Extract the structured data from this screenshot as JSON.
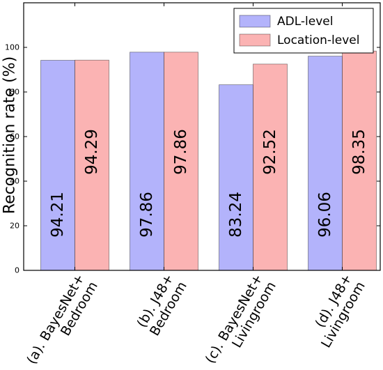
{
  "chart_data": {
    "type": "bar",
    "categories": [
      [
        "(a). BayesNet+",
        "Bedroom"
      ],
      [
        "(b). J48+",
        "Bedroom"
      ],
      [
        "(c). BayesNet+",
        "Livingroom"
      ],
      [
        "(d). J48+",
        "Livingroom"
      ]
    ],
    "series": [
      {
        "name": "ADL-level",
        "values": [
          94.21,
          97.86,
          83.24,
          96.06
        ],
        "value_labels": [
          "94.21",
          "97.86",
          "83.24",
          "96.06"
        ],
        "color": "#b3b3fb"
      },
      {
        "name": "Location-level",
        "values": [
          94.29,
          97.86,
          92.52,
          98.35
        ],
        "value_labels": [
          "94.29",
          "97.86",
          "92.52",
          "98.35"
        ],
        "color": "#fbb3b3"
      }
    ],
    "title": "",
    "xlabel": "",
    "ylabel": "Recognition rate (%)",
    "ylim": [
      0,
      120
    ],
    "yticks": [
      0,
      20,
      40,
      60,
      80,
      100
    ],
    "ytick_labels": [
      "0",
      "20",
      "40",
      "60",
      "80",
      "100"
    ],
    "grid": false,
    "legend_position": "top-right"
  }
}
